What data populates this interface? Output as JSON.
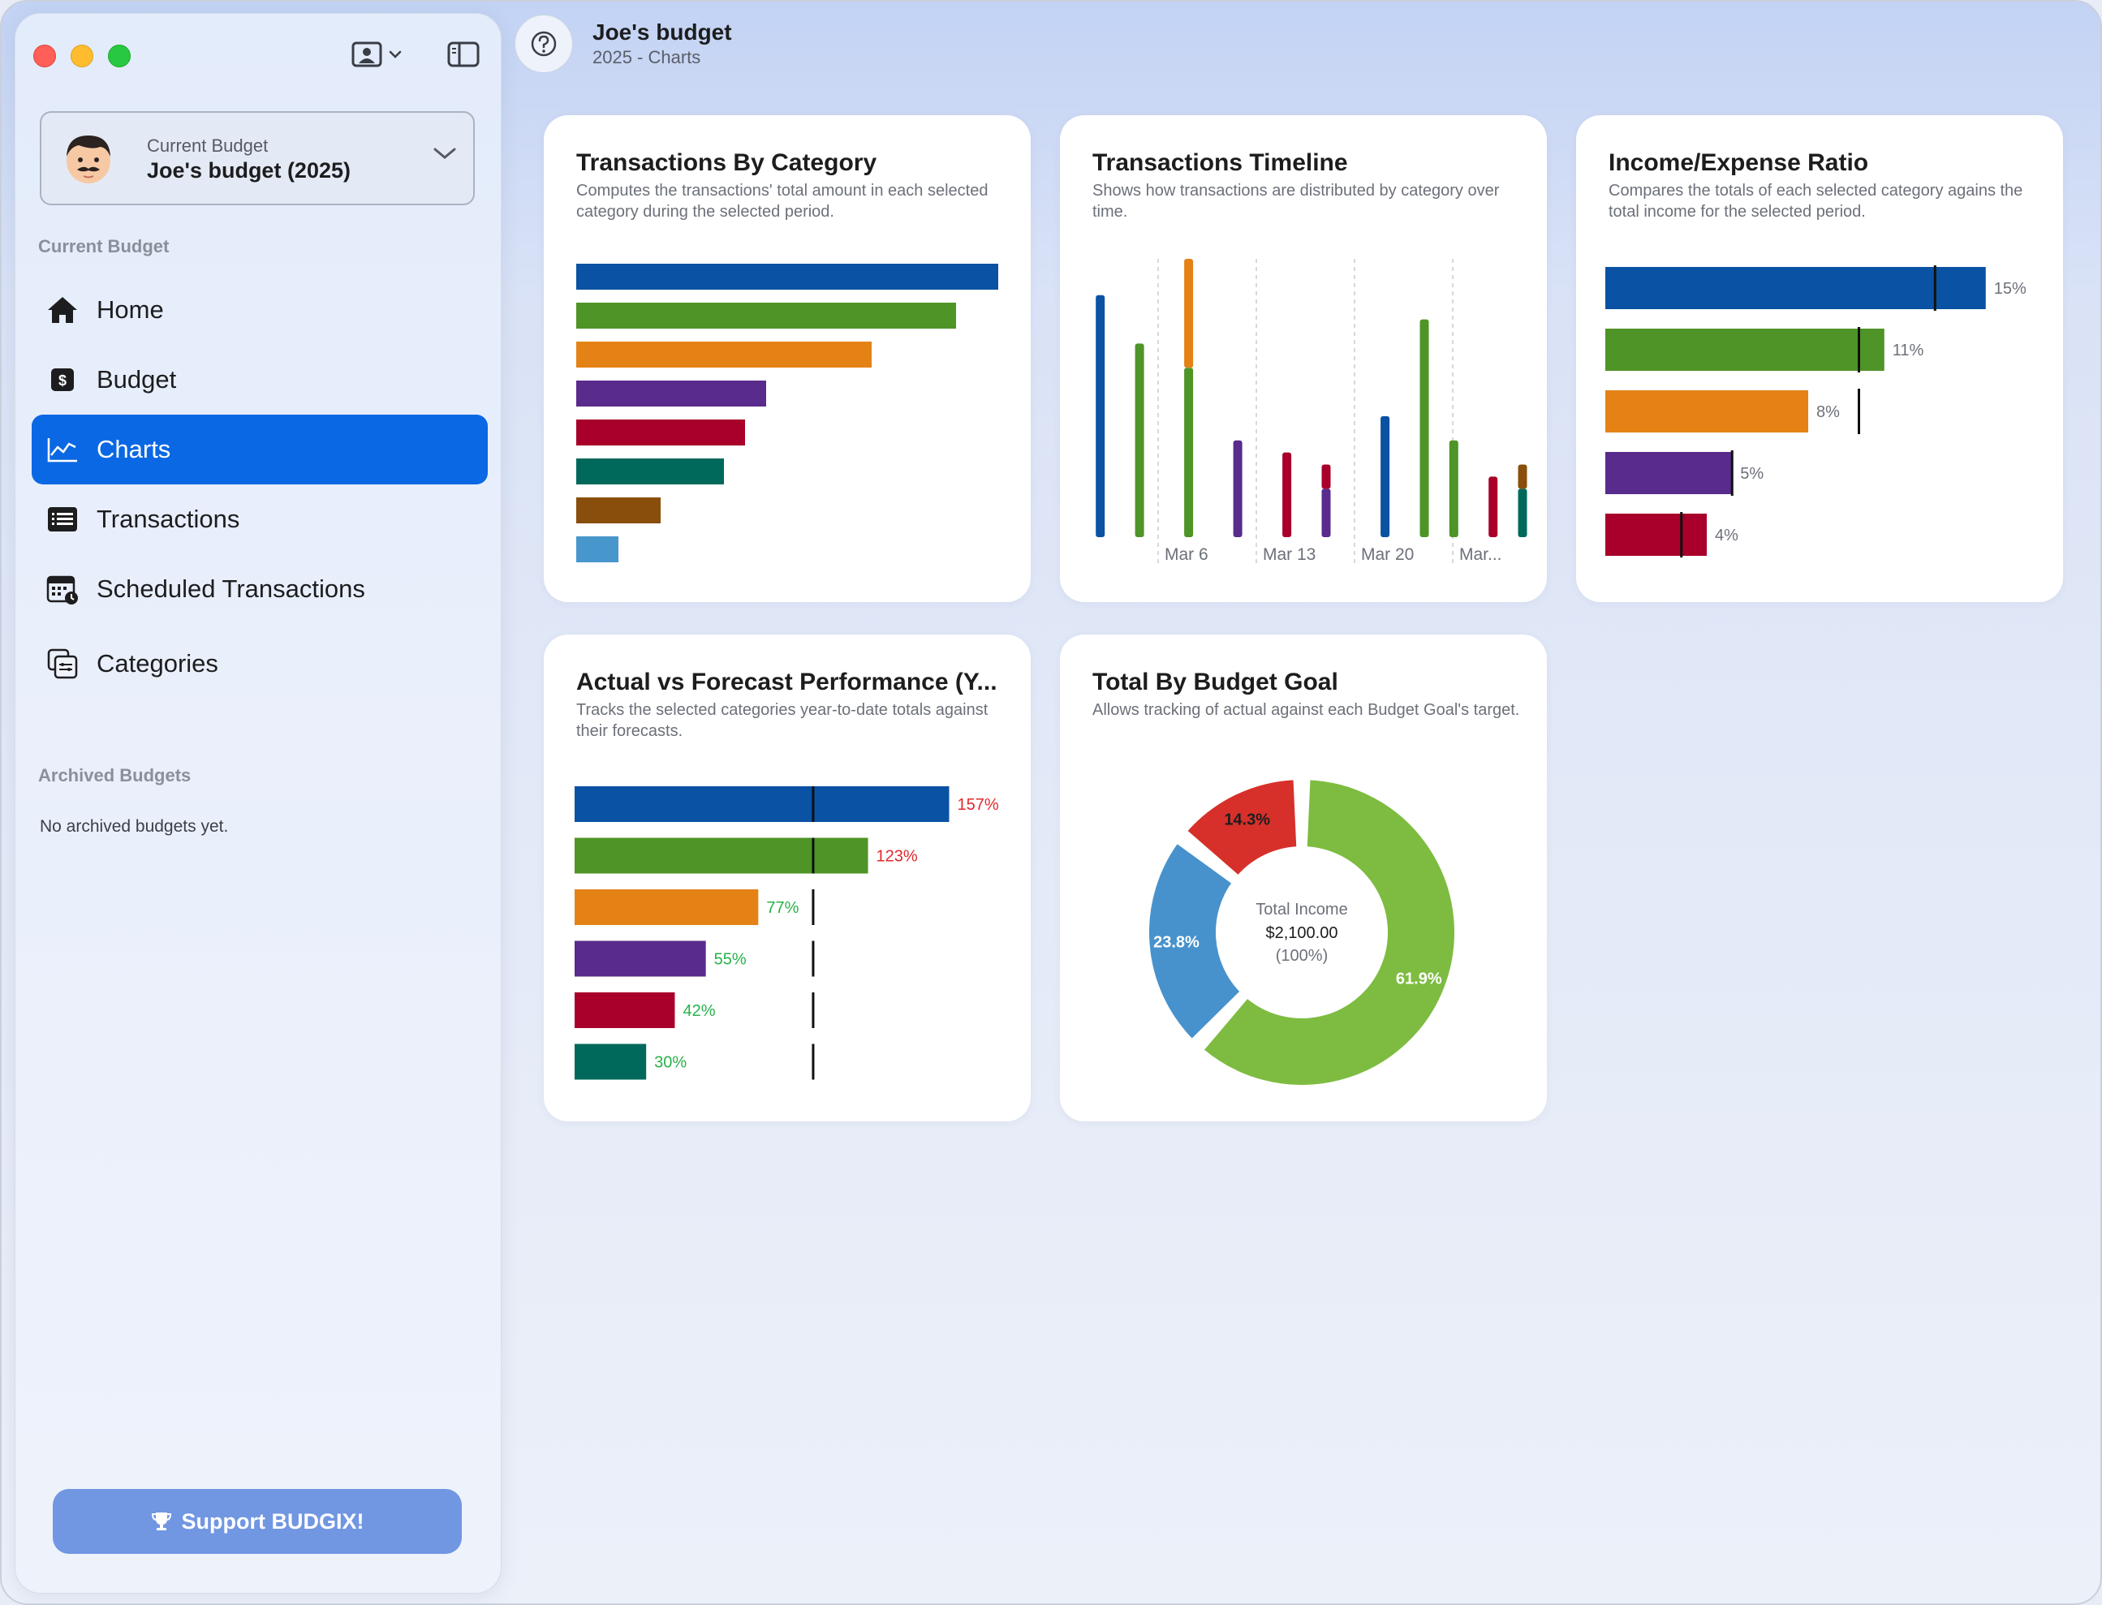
{
  "window": {
    "traffic_lights": [
      "close",
      "minimize",
      "zoom"
    ]
  },
  "sidebar": {
    "budget_picker": {
      "label": "Current Budget",
      "name": "Joe's budget (2025)"
    },
    "current_section": "Current Budget",
    "items": [
      {
        "label": "Home",
        "icon": "house-icon"
      },
      {
        "label": "Budget",
        "icon": "dollar-icon"
      },
      {
        "label": "Charts",
        "icon": "chart-line-icon",
        "active": true
      },
      {
        "label": "Transactions",
        "icon": "list-icon"
      },
      {
        "label": "Scheduled Transactions",
        "icon": "calendar-clock-icon"
      },
      {
        "label": "Categories",
        "icon": "categories-icon"
      }
    ],
    "archived_section": "Archived Budgets",
    "archived_empty": "No archived budgets yet.",
    "support_label": "Support BUDGIX!"
  },
  "header": {
    "title": "Joe's budget",
    "subtitle": "2025 - Charts"
  },
  "colors": {
    "blue": "#0a52a3",
    "green": "#4e9426",
    "orange": "#e48216",
    "purple": "#582b8c",
    "red": "#a8002a",
    "teal": "#00695c",
    "brown": "#8a4e0c",
    "lightblue": "#4796cc",
    "accent": "#0a68e4",
    "over": "#e2282c",
    "under": "#27b24a"
  },
  "cards": {
    "by_category": {
      "title": "Transactions By Category",
      "description": "Computes the transactions' total amount in each selected category during the selected period."
    },
    "timeline": {
      "title": "Transactions Timeline",
      "description": "Shows how transactions are distributed by category over time."
    },
    "ratio": {
      "title": "Income/Expense Ratio",
      "description": "Compares the totals of each selected category agains the total income for the selected period."
    },
    "forecast": {
      "title": "Actual vs Forecast Performance (Y...",
      "description": "Tracks the selected categories year-to-date totals against their forecasts."
    },
    "goal": {
      "title": "Total By Budget Goal",
      "description": "Allows tracking of actual against each Budget Goal's target."
    }
  },
  "chart_data": [
    {
      "type": "bar",
      "id": "by_category",
      "orientation": "horizontal",
      "values": [
        100,
        90,
        70,
        45,
        40,
        35,
        20,
        10
      ],
      "colors": [
        "blue",
        "green",
        "orange",
        "purple",
        "red",
        "teal",
        "brown",
        "lightblue"
      ]
    },
    {
      "type": "bar",
      "id": "timeline",
      "stacked": true,
      "x_tick_labels": [
        "Mar 6",
        "Mar 13",
        "Mar 20",
        "Mar..."
      ],
      "bars": [
        {
          "slot": 0.2,
          "segments": [
            {
              "color": "blue",
              "value": 100
            }
          ]
        },
        {
          "slot": 0.6,
          "segments": [
            {
              "color": "green",
              "value": 80
            }
          ]
        },
        {
          "slot": 1.1,
          "segments": [
            {
              "color": "green",
              "value": 70
            },
            {
              "color": "orange",
              "value": 45
            }
          ]
        },
        {
          "slot": 1.6,
          "segments": [
            {
              "color": "purple",
              "value": 40
            }
          ]
        },
        {
          "slot": 2.1,
          "segments": [
            {
              "color": "red",
              "value": 35
            }
          ]
        },
        {
          "slot": 2.5,
          "segments": [
            {
              "color": "purple",
              "value": 20
            },
            {
              "color": "red",
              "value": 10
            }
          ]
        },
        {
          "slot": 3.1,
          "segments": [
            {
              "color": "blue",
              "value": 50
            }
          ]
        },
        {
          "slot": 3.5,
          "segments": [
            {
              "color": "green",
              "value": 90
            }
          ]
        },
        {
          "slot": 3.8,
          "segments": [
            {
              "color": "green",
              "value": 40
            }
          ]
        },
        {
          "slot": 4.2,
          "segments": [
            {
              "color": "red",
              "value": 25
            }
          ]
        },
        {
          "slot": 4.5,
          "segments": [
            {
              "color": "teal",
              "value": 20
            },
            {
              "color": "brown",
              "value": 10
            }
          ]
        }
      ]
    },
    {
      "type": "bar",
      "id": "ratio",
      "orientation": "horizontal",
      "xlim": [
        0,
        16
      ],
      "bars": [
        {
          "color": "blue",
          "value": 15,
          "label": "15%",
          "marker": 13
        },
        {
          "color": "green",
          "value": 11,
          "label": "11%",
          "marker": 10
        },
        {
          "color": "orange",
          "value": 8,
          "label": "8%",
          "marker": 10
        },
        {
          "color": "purple",
          "value": 5,
          "label": "5%",
          "marker": 5
        },
        {
          "color": "red",
          "value": 4,
          "label": "4%",
          "marker": 3
        }
      ]
    },
    {
      "type": "bar",
      "id": "forecast",
      "orientation": "horizontal",
      "forecast_line": 100,
      "xlim": [
        0,
        165
      ],
      "bars": [
        {
          "color": "blue",
          "value": 157,
          "label": "157%"
        },
        {
          "color": "green",
          "value": 123,
          "label": "123%"
        },
        {
          "color": "orange",
          "value": 77,
          "label": "77%"
        },
        {
          "color": "purple",
          "value": 55,
          "label": "55%"
        },
        {
          "color": "red",
          "value": 42,
          "label": "42%"
        },
        {
          "color": "teal",
          "value": 30,
          "label": "30%"
        }
      ]
    },
    {
      "type": "pie",
      "id": "goal",
      "donut": true,
      "center": {
        "line1": "Total Income",
        "line2": "$2,100.00",
        "line3": "(100%)"
      },
      "slices": [
        {
          "value": 61.9,
          "label": "61.9%",
          "color": "#7dbc40"
        },
        {
          "value": 23.8,
          "label": "23.8%",
          "color": "#4792cc"
        },
        {
          "value": 14.3,
          "label": "14.3%",
          "color": "#d7302a"
        }
      ]
    }
  ]
}
